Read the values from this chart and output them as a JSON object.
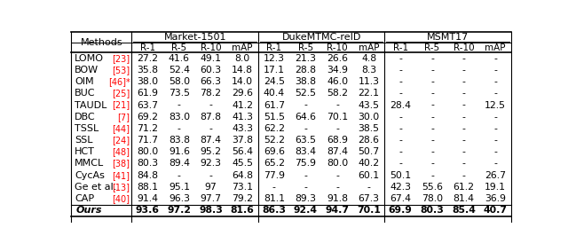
{
  "methods": [
    "LOMO",
    "BOW",
    "OIM",
    "BUC",
    "TAUDL",
    "DBC",
    "TSSL",
    "SSL",
    "HCT",
    "MMCL",
    "CycAs",
    "Ge et al.",
    "CAP",
    "Ours"
  ],
  "method_refs": [
    "[23]",
    "[53]",
    "[46]*",
    "[25]",
    "[21]",
    "[7]",
    "[44]",
    "[24]",
    "[48]",
    "[38]",
    "[41]",
    "[13]",
    "[40]",
    ""
  ],
  "method_ref_colors": [
    "red",
    "red",
    "red",
    "red",
    "red",
    "red",
    "red",
    "red",
    "red",
    "red",
    "red",
    "red",
    "red",
    ""
  ],
  "method_italic": [
    false,
    false,
    false,
    false,
    false,
    false,
    false,
    false,
    false,
    false,
    false,
    false,
    false,
    true
  ],
  "method_bold": [
    false,
    false,
    false,
    false,
    false,
    false,
    false,
    false,
    false,
    false,
    false,
    false,
    false,
    true
  ],
  "data": [
    [
      "27.2",
      "41.6",
      "49.1",
      "8.0",
      "12.3",
      "21.3",
      "26.6",
      "4.8",
      "-",
      "-",
      "-",
      "-"
    ],
    [
      "35.8",
      "52.4",
      "60.3",
      "14.8",
      "17.1",
      "28.8",
      "34.9",
      "8.3",
      "-",
      "-",
      "-",
      "-"
    ],
    [
      "38.0",
      "58.0",
      "66.3",
      "14.0",
      "24.5",
      "38.8",
      "46.0",
      "11.3",
      "-",
      "-",
      "-",
      "-"
    ],
    [
      "61.9",
      "73.5",
      "78.2",
      "29.6",
      "40.4",
      "52.5",
      "58.2",
      "22.1",
      "-",
      "-",
      "-",
      "-"
    ],
    [
      "63.7",
      "-",
      "-",
      "41.2",
      "61.7",
      "-",
      "-",
      "43.5",
      "28.4",
      "-",
      "-",
      "12.5"
    ],
    [
      "69.2",
      "83.0",
      "87.8",
      "41.3",
      "51.5",
      "64.6",
      "70.1",
      "30.0",
      "-",
      "-",
      "-",
      "-"
    ],
    [
      "71.2",
      "-",
      "-",
      "43.3",
      "62.2",
      "-",
      "-",
      "38.5",
      "-",
      "-",
      "-",
      "-"
    ],
    [
      "71.7",
      "83.8",
      "87.4",
      "37.8",
      "52.2",
      "63.5",
      "68.9",
      "28.6",
      "-",
      "-",
      "-",
      "-"
    ],
    [
      "80.0",
      "91.6",
      "95.2",
      "56.4",
      "69.6",
      "83.4",
      "87.4",
      "50.7",
      "-",
      "-",
      "-",
      "-"
    ],
    [
      "80.3",
      "89.4",
      "92.3",
      "45.5",
      "65.2",
      "75.9",
      "80.0",
      "40.2",
      "-",
      "-",
      "-",
      "-"
    ],
    [
      "84.8",
      "-",
      "-",
      "64.8",
      "77.9",
      "-",
      "-",
      "60.1",
      "50.1",
      "-",
      "-",
      "26.7"
    ],
    [
      "88.1",
      "95.1",
      "97",
      "73.1",
      "-",
      "-",
      "-",
      "-",
      "42.3",
      "55.6",
      "61.2",
      "19.1"
    ],
    [
      "91.4",
      "96.3",
      "97.7",
      "79.2",
      "81.1",
      "89.3",
      "91.8",
      "67.3",
      "67.4",
      "78.0",
      "81.4",
      "36.9"
    ],
    [
      "93.6",
      "97.2",
      "98.3",
      "81.6",
      "86.3",
      "92.4",
      "94.7",
      "70.1",
      "69.9",
      "80.3",
      "85.4",
      "40.7"
    ]
  ],
  "dataset_headers": [
    "Market-1501",
    "DukeMTMC-reID",
    "MSMT17"
  ],
  "sub_headers": [
    "R-1",
    "R-5",
    "R-10",
    "mAP"
  ],
  "last_row_bold": true,
  "bg_color": "white",
  "fig_width": 6.4,
  "fig_height": 2.83
}
